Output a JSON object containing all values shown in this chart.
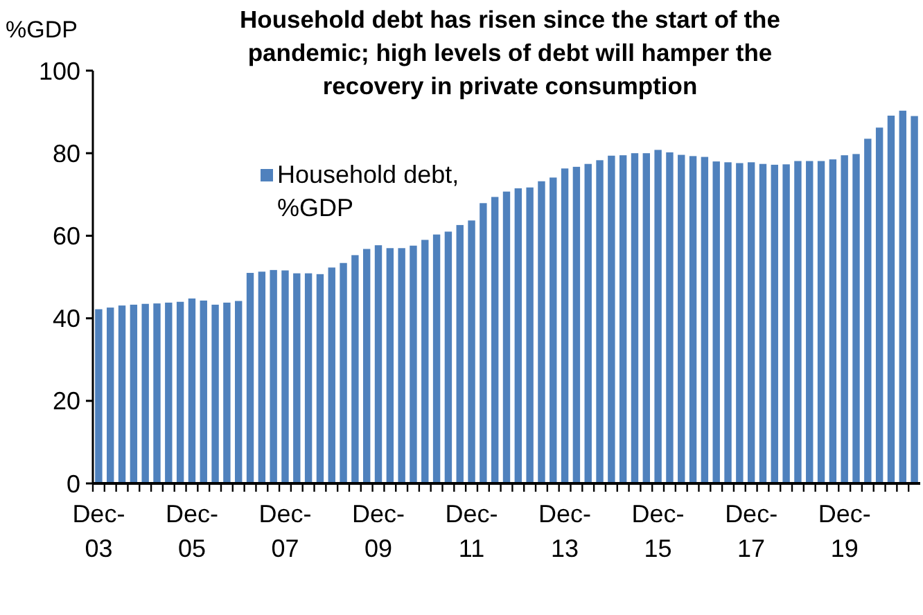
{
  "chart_data": {
    "type": "bar",
    "title": "Household debt has risen since the start of the pandemic; high levels of debt will hamper the recovery in private consumption",
    "ylabel": "%GDP",
    "categories": [
      "Dec-03",
      null,
      null,
      null,
      null,
      null,
      null,
      null,
      "Dec-05",
      null,
      null,
      null,
      null,
      null,
      null,
      null,
      "Dec-07",
      null,
      null,
      null,
      null,
      null,
      null,
      null,
      "Dec-09",
      null,
      null,
      null,
      null,
      null,
      null,
      null,
      "Dec-11",
      null,
      null,
      null,
      null,
      null,
      null,
      null,
      "Dec-13",
      null,
      null,
      null,
      null,
      null,
      null,
      null,
      "Dec-15",
      null,
      null,
      null,
      null,
      null,
      null,
      null,
      "Dec-17",
      null,
      null,
      null,
      null,
      null,
      null,
      null,
      "Dec-19",
      null,
      null,
      null,
      null,
      null,
      null
    ],
    "series": [
      {
        "name": "Household debt, %GDP",
        "color": "#4f81bd",
        "values": [
          42.2,
          42.6,
          43.1,
          43.3,
          43.5,
          43.6,
          43.8,
          44.0,
          44.8,
          44.3,
          43.3,
          43.8,
          44.2,
          51.0,
          51.3,
          51.7,
          51.6,
          50.9,
          50.9,
          50.7,
          52.3,
          53.4,
          55.3,
          56.8,
          57.7,
          57.0,
          57.0,
          57.6,
          59.0,
          60.3,
          61.0,
          62.6,
          63.7,
          67.9,
          69.4,
          70.7,
          71.5,
          71.7,
          73.2,
          74.1,
          76.3,
          76.7,
          77.4,
          78.3,
          79.4,
          79.5,
          80.0,
          80.0,
          80.8,
          80.2,
          79.6,
          79.3,
          79.1,
          78.0,
          77.8,
          77.6,
          77.8,
          77.4,
          77.2,
          77.3,
          78.1,
          78.1,
          78.1,
          78.5,
          79.5,
          79.8,
          83.5,
          86.2,
          89.1,
          90.3,
          89.0
        ]
      }
    ],
    "ylim": [
      0,
      100
    ],
    "yticks": [
      0,
      20,
      40,
      60,
      80,
      100
    ],
    "grid": false,
    "legend": "top left"
  }
}
